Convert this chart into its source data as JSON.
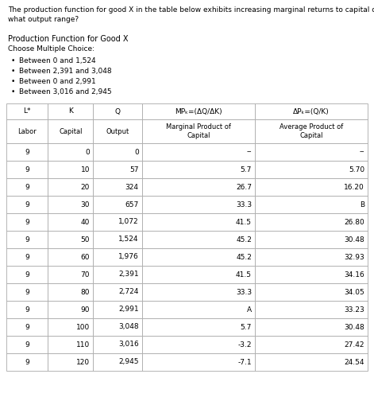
{
  "question_text_line1": "The production function for good X in the table below exhibits increasing marginal returns to capital over",
  "question_text_line2": "what output range?",
  "section_title": "Production Function for Good X",
  "choose_label": "Choose Multiple Choice:",
  "bullets": [
    "Between 0 and 1,524",
    "Between 2,391 and 3,048",
    "Between 0 and 2,991",
    "Between 3,016 and 2,945"
  ],
  "col_headers_top": [
    "L*",
    "K",
    "Q",
    "MPₖ=(ΔQ/ΔK)",
    "ΔPₖ=(Q/K)"
  ],
  "col_headers_bottom": [
    "Labor",
    "Capital",
    "Output",
    "Marginal Product of\nCapital",
    "Average Product of\nCapital"
  ],
  "rows": [
    [
      "9",
      "0",
      "0",
      "--",
      "--"
    ],
    [
      "9",
      "10",
      "57",
      "5.7",
      "5.70"
    ],
    [
      "9",
      "20",
      "324",
      "26.7",
      "16.20"
    ],
    [
      "9",
      "30",
      "657",
      "33.3",
      "B"
    ],
    [
      "9",
      "40",
      "1,072",
      "41.5",
      "26.80"
    ],
    [
      "9",
      "50",
      "1,524",
      "45.2",
      "30.48"
    ],
    [
      "9",
      "60",
      "1,976",
      "45.2",
      "32.93"
    ],
    [
      "9",
      "70",
      "2,391",
      "41.5",
      "34.16"
    ],
    [
      "9",
      "80",
      "2,724",
      "33.3",
      "34.05"
    ],
    [
      "9",
      "90",
      "2,991",
      "A",
      "33.23"
    ],
    [
      "9",
      "100",
      "3,048",
      "5.7",
      "30.48"
    ],
    [
      "9",
      "110",
      "3,016",
      "-3.2",
      "27.42"
    ],
    [
      "9",
      "120",
      "2,945",
      "-7.1",
      "24.54"
    ]
  ],
  "bg_color": "#ffffff",
  "border_color": "#aaaaaa",
  "text_color": "#000000",
  "fq": 6.5,
  "ft": 6.5,
  "fh": 6.5
}
